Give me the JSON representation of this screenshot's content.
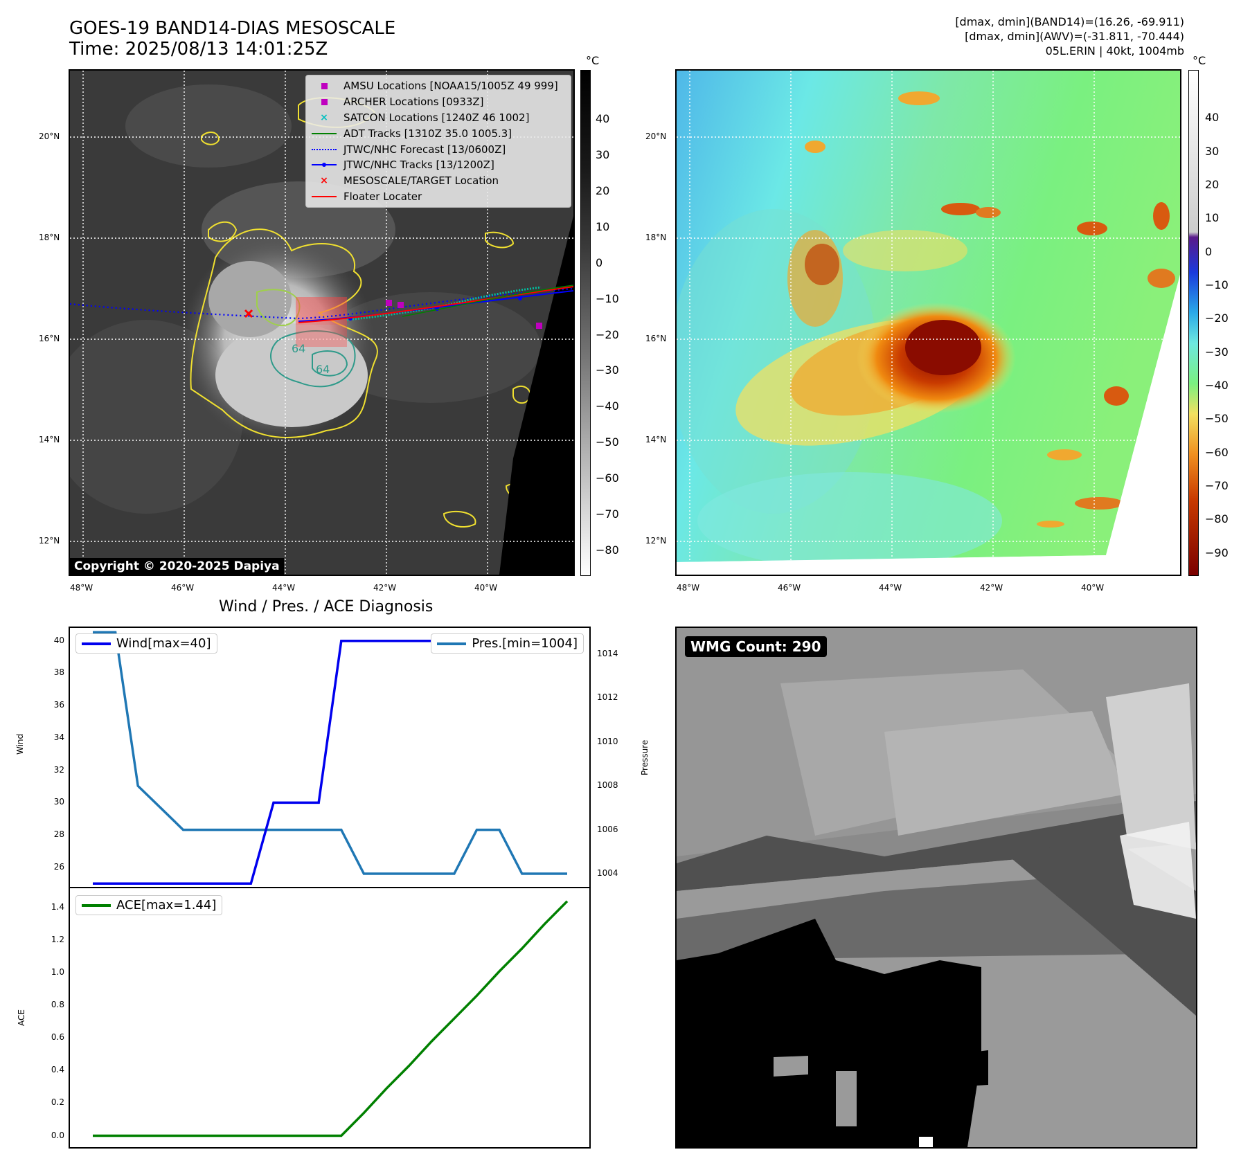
{
  "header": {
    "title": "GOES-19 BAND14-DIAS MESOSCALE",
    "time": "Time: 2025/08/13 14:01:25Z",
    "info": [
      "[dmax, dmin](BAND14)=(16.26, -69.911)",
      "[dmax, dmin](AWV)=(-31.811, -70.444)",
      "05L.ERIN | 40kt, 1004mb"
    ]
  },
  "map": {
    "lat_labels": [
      "20°N",
      "18°N",
      "16°N",
      "14°N",
      "12°N"
    ],
    "lon_labels": [
      "48°W",
      "46°W",
      "44°W",
      "42°W",
      "40°W"
    ],
    "copyright": "Copyright © 2020-2025 Dapiya",
    "contour_labels": [
      "64",
      "64"
    ],
    "legend": [
      {
        "label": "AMSU Locations [NOAA15/1005Z 49 999]",
        "symbol": "square",
        "color": "#bf00bf"
      },
      {
        "label": "ARCHER Locations [0933Z]",
        "symbol": "square",
        "color": "#bf00bf"
      },
      {
        "label": "SATCON Locations [1240Z 46 1002]",
        "symbol": "x",
        "color": "#00bfbf"
      },
      {
        "label": "ADT Tracks [1310Z 35.0 1005.3]",
        "symbol": "line",
        "color": "#008000"
      },
      {
        "label": "JTWC/NHC Forecast [13/0600Z]",
        "symbol": "dotted",
        "color": "#0000ff"
      },
      {
        "label": "JTWC/NHC Tracks [13/1200Z]",
        "symbol": "line-dot",
        "color": "#0000ff"
      },
      {
        "label": "MESOSCALE/TARGET Location",
        "symbol": "x",
        "color": "#ff0000"
      },
      {
        "label": "Floater Locater",
        "symbol": "line",
        "color": "#ff0000"
      }
    ]
  },
  "colorbar_left": {
    "unit": "°C",
    "ticks": [
      "40",
      "30",
      "20",
      "10",
      "0",
      "−10",
      "−20",
      "−30",
      "−40",
      "−50",
      "−60",
      "−70",
      "−80"
    ]
  },
  "colorbar_right": {
    "unit": "°C",
    "ticks": [
      "40",
      "30",
      "20",
      "10",
      "0",
      "−10",
      "−20",
      "−30",
      "−40",
      "−50",
      "−60",
      "−70",
      "−80",
      "−90"
    ]
  },
  "wmg": {
    "label": "WMG Count: 290"
  },
  "chart_data": [
    {
      "type": "line",
      "title": "Wind / Pres. / ACE Diagnosis",
      "ylabel": "Wind",
      "y2label": "Pressure",
      "ylim": [
        24.8,
        40.8
      ],
      "y2lim": [
        1003.4,
        1015.2
      ],
      "yticks": [
        26,
        28,
        30,
        32,
        34,
        36,
        38,
        40
      ],
      "y2ticks": [
        1004,
        1006,
        1008,
        1010,
        1012,
        1014
      ],
      "series": [
        {
          "name": "Wind[max=40]",
          "color": "#0000ee",
          "values": [
            25,
            25,
            25,
            25,
            25,
            25,
            25,
            25,
            30,
            30,
            30,
            40,
            40,
            40,
            40,
            40,
            40,
            40,
            40,
            40,
            40,
            40
          ]
        },
        {
          "name": "Pres.[min=1004]",
          "color": "#1f77b4",
          "axis": "right",
          "values": [
            1015,
            1015,
            1008,
            1007,
            1006,
            1006,
            1006,
            1006,
            1006,
            1006,
            1006,
            1006,
            1004,
            1004,
            1004,
            1004,
            1004,
            1006,
            1006,
            1004,
            1004,
            1004
          ]
        }
      ]
    },
    {
      "type": "line",
      "ylabel": "ACE",
      "ylim": [
        -0.07,
        1.52
      ],
      "yticks": [
        "0.0",
        "0.2",
        "0.4",
        "0.6",
        "0.8",
        "1.0",
        "1.2",
        "1.4"
      ],
      "series": [
        {
          "name": "ACE[max=1.44]",
          "color": "#008000",
          "values": [
            0,
            0,
            0,
            0,
            0,
            0,
            0,
            0,
            0,
            0,
            0,
            0,
            0.14,
            0.29,
            0.43,
            0.58,
            0.72,
            0.86,
            1.01,
            1.15,
            1.3,
            1.44
          ]
        }
      ]
    }
  ]
}
